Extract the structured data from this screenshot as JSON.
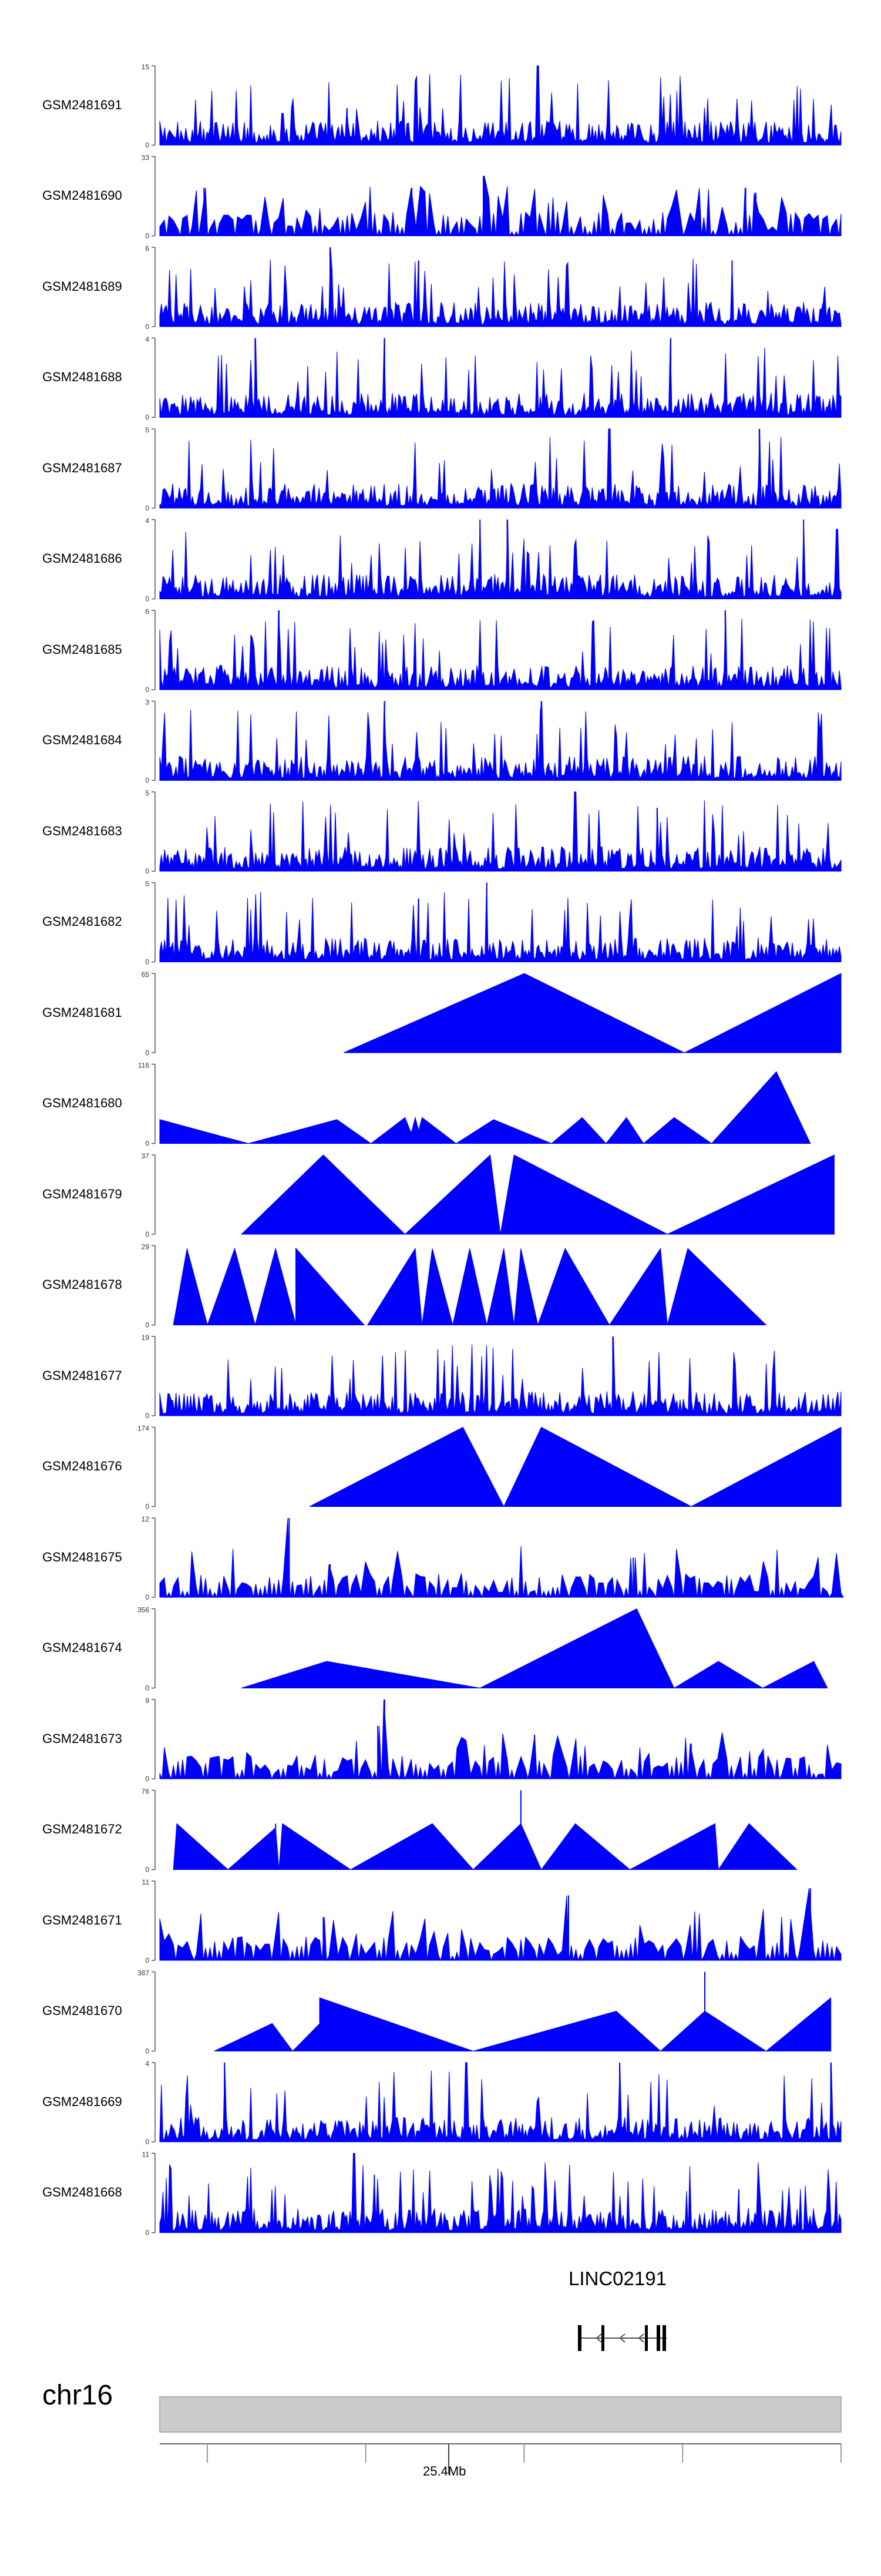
{
  "chart_data": {
    "type": "area",
    "title": "",
    "xlabel": "",
    "ylabel": "",
    "x_range_mb": [
      25.27,
      25.7
    ],
    "tracks": [
      {
        "name": "GSM2481691",
        "ymax": 15,
        "ymin": 0,
        "style": "dense",
        "peaks": [
          [
            0.18,
            6
          ],
          [
            0.275,
            7
          ],
          [
            0.555,
            15
          ]
        ]
      },
      {
        "name": "GSM2481690",
        "ymax": 33,
        "ymin": 0,
        "style": "medium",
        "peaks": [
          [
            0.065,
            20
          ],
          [
            0.37,
            20
          ],
          [
            0.475,
            25
          ],
          [
            0.86,
            20
          ],
          [
            0.875,
            18
          ]
        ]
      },
      {
        "name": "GSM2481689",
        "ymax": 6,
        "ymin": 0,
        "style": "dense",
        "peaks": [
          [
            0.25,
            6
          ],
          [
            0.38,
            5
          ],
          [
            0.84,
            5
          ]
        ]
      },
      {
        "name": "GSM2481688",
        "ymax": 4,
        "ymin": 0,
        "style": "dense",
        "peaks": [
          [
            0.14,
            4
          ],
          [
            0.33,
            4
          ],
          [
            0.75,
            4
          ]
        ]
      },
      {
        "name": "GSM2481687",
        "ymax": 5,
        "ymin": 0,
        "style": "dense",
        "peaks": [
          [
            0.66,
            5
          ],
          [
            0.88,
            5
          ]
        ]
      },
      {
        "name": "GSM2481686",
        "ymax": 4,
        "ymin": 0,
        "style": "dense",
        "peaks": [
          [
            0.47,
            4
          ],
          [
            0.51,
            4
          ],
          [
            0.945,
            4
          ]
        ]
      },
      {
        "name": "GSM2481685",
        "ymax": 6,
        "ymin": 0,
        "style": "dense",
        "peaks": [
          [
            0.175,
            6
          ],
          [
            0.83,
            6
          ]
        ]
      },
      {
        "name": "GSM2481684",
        "ymax": 3,
        "ymin": 0,
        "style": "dense",
        "peaks": [
          [
            0.33,
            3
          ],
          [
            0.56,
            3
          ]
        ]
      },
      {
        "name": "GSM2481683",
        "ymax": 5,
        "ymin": 0,
        "style": "dense",
        "peaks": [
          [
            0.61,
            5
          ],
          [
            0.73,
            4
          ]
        ]
      },
      {
        "name": "GSM2481682",
        "ymax": 5,
        "ymin": 0,
        "style": "dense",
        "peaks": [
          [
            0.48,
            5
          ],
          [
            0.38,
            4
          ]
        ]
      },
      {
        "name": "GSM2481681",
        "ymax": 65,
        "ymin": 0,
        "style": "triangles",
        "triangles": [
          [
            0.27,
            0.535,
            0.77,
            65
          ],
          [
            0.77,
            1.0,
            1.0,
            65
          ]
        ],
        "spikes": []
      },
      {
        "name": "GSM2481680",
        "ymax": 116,
        "ymin": 0,
        "style": "triangles",
        "triangles": [
          [
            0.0,
            0.0,
            0.13,
            35
          ],
          [
            0.13,
            0.26,
            0.31,
            35
          ],
          [
            0.31,
            0.36,
            0.375,
            38
          ],
          [
            0.365,
            0.375,
            0.385,
            38
          ],
          [
            0.375,
            0.385,
            0.435,
            38
          ],
          [
            0.435,
            0.49,
            0.575,
            35
          ],
          [
            0.575,
            0.62,
            0.655,
            38
          ],
          [
            0.655,
            0.685,
            0.71,
            38
          ],
          [
            0.71,
            0.755,
            0.81,
            38
          ],
          [
            0.81,
            0.905,
            0.955,
            105
          ]
        ],
        "spikes": [
          [
            0.905,
            105
          ]
        ]
      },
      {
        "name": "GSM2481679",
        "ymax": 37,
        "ymin": 0,
        "style": "triangles",
        "triangles": [
          [
            0.12,
            0.24,
            0.36,
            37
          ],
          [
            0.36,
            0.485,
            0.5,
            37
          ],
          [
            0.5,
            0.52,
            0.745,
            37
          ],
          [
            0.745,
            0.99,
            0.99,
            37
          ]
        ],
        "spikes": [
          [
            0.24,
            30
          ]
        ]
      },
      {
        "name": "GSM2481678",
        "ymax": 29,
        "ymin": 0,
        "style": "triangles",
        "triangles": [
          [
            0.02,
            0.04,
            0.07,
            28
          ],
          [
            0.07,
            0.11,
            0.14,
            28
          ],
          [
            0.14,
            0.17,
            0.2,
            28
          ],
          [
            0.2,
            0.2,
            0.3,
            28
          ],
          [
            0.305,
            0.375,
            0.385,
            28
          ],
          [
            0.385,
            0.4,
            0.43,
            28
          ],
          [
            0.43,
            0.455,
            0.48,
            28
          ],
          [
            0.48,
            0.505,
            0.52,
            28
          ],
          [
            0.52,
            0.53,
            0.555,
            28
          ],
          [
            0.555,
            0.595,
            0.66,
            28
          ],
          [
            0.66,
            0.735,
            0.745,
            28
          ],
          [
            0.745,
            0.775,
            0.89,
            28
          ]
        ],
        "spikes": [
          [
            0.2,
            28
          ],
          [
            0.595,
            14
          ],
          [
            0.735,
            17
          ]
        ]
      },
      {
        "name": "GSM2481677",
        "ymax": 19,
        "ymin": 0,
        "style": "dense",
        "peaks": [
          [
            0.665,
            19
          ]
        ]
      },
      {
        "name": "GSM2481676",
        "ymax": 174,
        "ymin": 0,
        "style": "triangles",
        "triangles": [
          [
            0.22,
            0.445,
            0.505,
            174
          ],
          [
            0.505,
            0.56,
            0.78,
            174
          ],
          [
            0.78,
            1.0,
            1.0,
            174
          ]
        ],
        "spikes": []
      },
      {
        "name": "GSM2481675",
        "ymax": 12,
        "ymin": 0,
        "style": "medium",
        "peaks": [
          [
            0.19,
            12
          ],
          [
            0.25,
            5
          ],
          [
            0.695,
            6
          ]
        ]
      },
      {
        "name": "GSM2481674",
        "ymax": 356,
        "ymin": 0,
        "style": "triangles",
        "triangles": [
          [
            0.12,
            0.245,
            0.47,
            120
          ],
          [
            0.47,
            0.7,
            0.755,
            356
          ],
          [
            0.755,
            0.82,
            0.885,
            120
          ],
          [
            0.885,
            0.96,
            0.98,
            120
          ]
        ],
        "spikes": [
          [
            0.7,
            356
          ]
        ]
      },
      {
        "name": "GSM2481673",
        "ymax": 9,
        "ymin": 0,
        "style": "medium",
        "peaks": [
          [
            0.33,
            9
          ],
          [
            0.32,
            6
          ],
          [
            0.55,
            5
          ],
          [
            0.78,
            4
          ]
        ]
      },
      {
        "name": "GSM2481672",
        "ymax": 76,
        "ymin": 0,
        "style": "triangles",
        "triangles": [
          [
            0.02,
            0.025,
            0.1,
            44
          ],
          [
            0.1,
            0.17,
            0.175,
            40
          ],
          [
            0.175,
            0.18,
            0.28,
            44
          ],
          [
            0.28,
            0.4,
            0.46,
            44
          ],
          [
            0.46,
            0.53,
            0.56,
            44
          ],
          [
            0.56,
            0.61,
            0.69,
            44
          ],
          [
            0.69,
            0.815,
            0.82,
            44
          ],
          [
            0.82,
            0.865,
            0.935,
            44
          ]
        ],
        "spikes": [
          [
            0.17,
            44
          ],
          [
            0.53,
            76
          ],
          [
            0.61,
            44
          ],
          [
            0.865,
            44
          ]
        ]
      },
      {
        "name": "GSM2481671",
        "ymax": 11,
        "ymin": 0,
        "style": "medium",
        "peaks": [
          [
            0.24,
            6
          ],
          [
            0.6,
            9
          ],
          [
            0.955,
            10
          ]
        ]
      },
      {
        "name": "GSM2481670",
        "ymax": 387,
        "ymin": 0,
        "style": "triangles",
        "triangles": [
          [
            0.08,
            0.165,
            0.195,
            135
          ],
          [
            0.195,
            0.235,
            0.235,
            135
          ],
          [
            0.235,
            0.235,
            0.46,
            260
          ],
          [
            0.46,
            0.67,
            0.735,
            195
          ],
          [
            0.735,
            0.8,
            0.89,
            195
          ],
          [
            0.89,
            0.985,
            0.985,
            260
          ]
        ],
        "spikes": [
          [
            0.165,
            135
          ],
          [
            0.235,
            260
          ],
          [
            0.67,
            195
          ],
          [
            0.8,
            387
          ]
        ]
      },
      {
        "name": "GSM2481669",
        "ymax": 4,
        "ymin": 0,
        "style": "dense",
        "peaks": [
          [
            0.095,
            4
          ],
          [
            0.45,
            4
          ],
          [
            0.675,
            4
          ],
          [
            0.985,
            4
          ]
        ]
      },
      {
        "name": "GSM2481668",
        "ymax": 11,
        "ymin": 0,
        "style": "dense",
        "peaks": [
          [
            0.285,
            11
          ],
          [
            0.315,
            8
          ],
          [
            0.85,
            6
          ]
        ]
      }
    ],
    "gene": {
      "name": "LINC02191",
      "strand": "-"
    },
    "ideogram": {
      "chromosome": "chr16",
      "tick_label": "25.4Mb",
      "tick_value_mb": 25.4,
      "ticks_mb": [
        25.3,
        25.4,
        25.5,
        25.6,
        25.7
      ]
    },
    "colors": {
      "track": "#0000ff",
      "ideogram": "#cccccc",
      "axis": "#555555"
    }
  }
}
